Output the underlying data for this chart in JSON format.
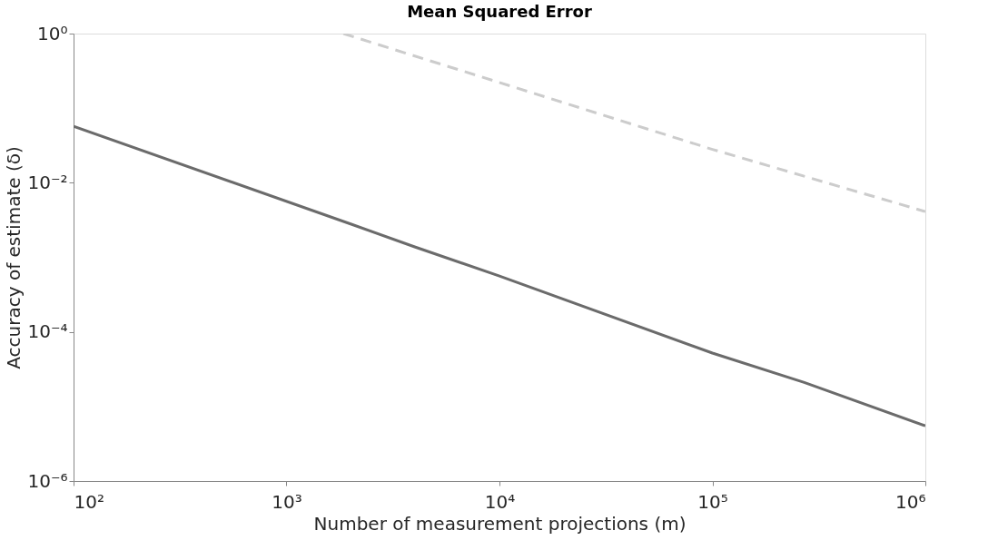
{
  "chart_data": {
    "type": "line",
    "title": "Mean Squared Error",
    "xlabel": "Number of measurement projections (m)",
    "ylabel": "Accuracy of estimate (δ)",
    "log": "xy",
    "grid": false,
    "marker": "none",
    "xlim": [
      100,
      1000000
    ],
    "ylim": [
      1e-06,
      1
    ],
    "xticks": [
      {
        "value": 100,
        "label": "10²"
      },
      {
        "value": 1000,
        "label": "10³"
      },
      {
        "value": 10000,
        "label": "10⁴"
      },
      {
        "value": 100000,
        "label": "10⁵"
      },
      {
        "value": 1000000,
        "label": "10⁶"
      }
    ],
    "yticks": [
      {
        "value": 1e-06,
        "label": "10⁻⁶"
      },
      {
        "value": 0.0001,
        "label": "10⁻⁴"
      },
      {
        "value": 0.01,
        "label": "10⁻²"
      },
      {
        "value": 1,
        "label": "10⁰"
      }
    ],
    "series": [
      {
        "color": "#6b6b6b",
        "line_style": "solid",
        "x": [
          100,
          2000,
          4000,
          10000,
          100000,
          270000,
          1000000
        ],
        "values": [
          0.057,
          0.0028,
          0.00138,
          0.00056,
          5.2e-05,
          2.1e-05,
          5.5e-06
        ]
      },
      {
        "color": "#cccccc",
        "line_style": "dashed",
        "x": [
          1850,
          100000,
          1000000
        ],
        "values": [
          1,
          0.028,
          0.0041
        ]
      }
    ]
  }
}
